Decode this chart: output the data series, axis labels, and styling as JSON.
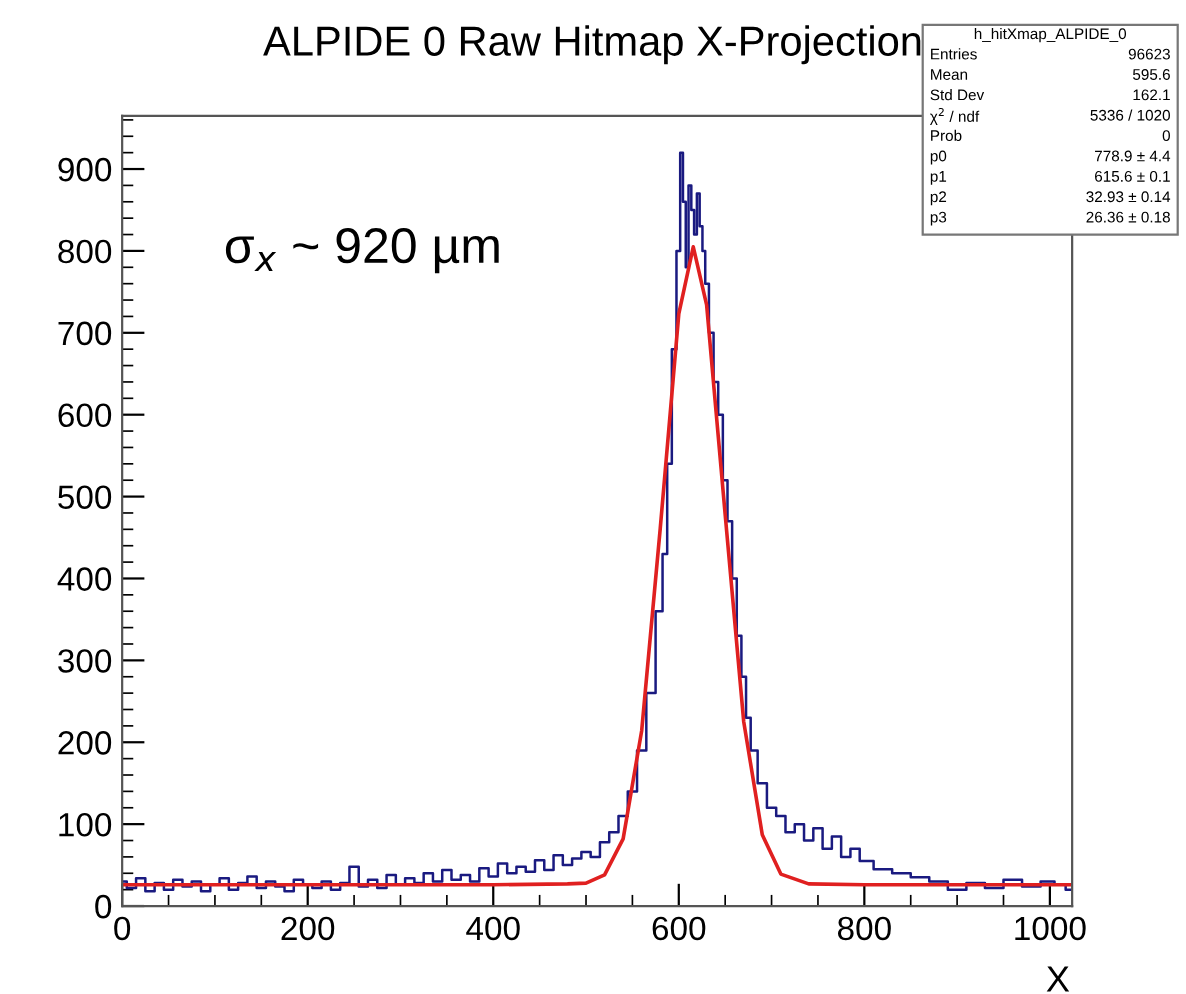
{
  "chart_data": {
    "type": "step",
    "title": "ALPIDE 0 Raw Hitmap X-Projection",
    "xlabel": "X",
    "annotations": [
      "σ$_{x}$ ~ 920 µm",
      "h_hitXmap_ALPIDE_0",
      "Entries\t96623",
      "Mean\t595.6",
      "Std Dev\t162.1",
      "χ$^{2}$ / ndf\t5336 / 1020",
      "Prob\t0",
      "p0\t778.9 ± 4.4",
      "p1\t615.6 ± 0.1",
      "p2\t32.93 ± 0.14",
      "p3\t26.36 ± 0.18"
    ],
    "series": [
      {
        "color": "#1a1a80",
        "x": [
          0,
          10,
          20,
          30,
          40,
          50,
          60,
          70,
          80,
          90,
          100,
          110,
          120,
          130,
          140,
          150,
          160,
          170,
          180,
          190,
          200,
          210,
          220,
          230,
          240,
          250,
          260,
          270,
          280,
          290,
          300,
          310,
          320,
          330,
          340,
          350,
          360,
          370,
          380,
          390,
          400,
          410,
          420,
          430,
          440,
          450,
          460,
          470,
          480,
          490,
          500,
          510,
          520,
          530,
          540,
          550,
          560,
          570,
          580,
          585,
          590,
          595,
          600,
          603,
          606,
          609,
          612,
          615,
          618,
          621,
          624,
          627,
          630,
          635,
          640,
          645,
          650,
          655,
          660,
          665,
          670,
          675,
          680,
          690,
          700,
          710,
          720,
          730,
          740,
          750,
          760,
          770,
          780,
          790,
          800,
          820,
          840,
          860,
          880,
          900,
          920,
          940,
          960,
          980,
          1000,
          1010,
          1024
        ],
        "values": [
          30,
          22,
          34,
          18,
          28,
          20,
          32,
          24,
          30,
          18,
          26,
          34,
          20,
          28,
          36,
          22,
          30,
          24,
          18,
          32,
          26,
          22,
          30,
          20,
          28,
          48,
          24,
          32,
          22,
          38,
          26,
          34,
          28,
          40,
          30,
          44,
          32,
          38,
          30,
          46,
          36,
          52,
          40,
          48,
          42,
          56,
          44,
          62,
          50,
          58,
          66,
          60,
          78,
          90,
          110,
          140,
          190,
          260,
          360,
          430,
          540,
          680,
          800,
          920,
          860,
          780,
          880,
          850,
          820,
          870,
          830,
          800,
          760,
          700,
          640,
          600,
          520,
          470,
          400,
          330,
          280,
          230,
          190,
          150,
          120,
          110,
          90,
          100,
          80,
          95,
          70,
          85,
          60,
          70,
          55,
          45,
          40,
          35,
          30,
          20,
          28,
          22,
          32,
          24,
          30,
          26,
          20
        ]
      },
      {
        "type": "line",
        "color": "#e02020",
        "x": [
          0,
          200,
          400,
          480,
          500,
          520,
          540,
          560,
          580,
          600,
          615.6,
          630,
          650,
          670,
          690,
          710,
          740,
          800,
          1024
        ],
        "values": [
          26,
          26,
          26,
          27,
          28,
          38,
          82,
          214,
          461,
          723,
          805,
          734,
          478,
          225,
          87,
          39,
          27,
          26,
          26
        ]
      }
    ],
    "xlim": [
      0,
      1024
    ],
    "xticks": [
      0,
      200,
      400,
      600,
      800,
      1000
    ],
    "ylim": [
      0,
      965
    ],
    "yticks": [
      0,
      100,
      200,
      300,
      400,
      500,
      600,
      700,
      800,
      900
    ],
    "grid": false
  }
}
